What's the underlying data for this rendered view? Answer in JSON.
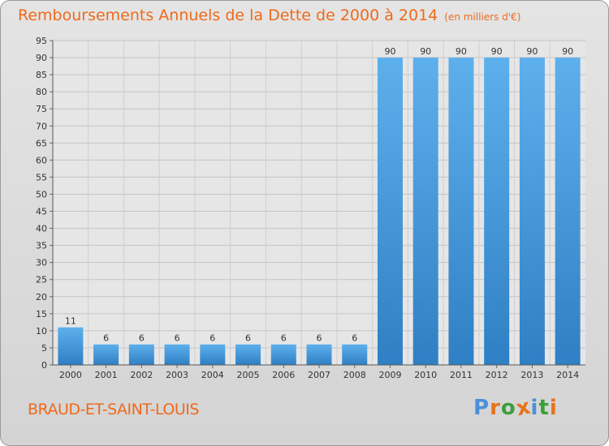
{
  "chart_data": {
    "type": "bar",
    "title": "Remboursements Annuels de la Dette de 2000 à 2014",
    "subtitle": "(en milliers d'€)",
    "categories": [
      "2000",
      "2001",
      "2002",
      "2003",
      "2004",
      "2005",
      "2006",
      "2007",
      "2008",
      "2009",
      "2010",
      "2011",
      "2012",
      "2013",
      "2014"
    ],
    "values": [
      11,
      6,
      6,
      6,
      6,
      6,
      6,
      6,
      6,
      90,
      90,
      90,
      90,
      90,
      90
    ],
    "xlabel": "",
    "ylabel": "",
    "ylim": [
      0,
      95
    ],
    "yticks": [
      0,
      5,
      10,
      15,
      20,
      25,
      30,
      35,
      40,
      45,
      50,
      55,
      60,
      65,
      70,
      75,
      80,
      85,
      90,
      95
    ],
    "grid": true,
    "bar_color": "#3d95dc"
  },
  "footer": {
    "commune": "BRAUD-ET-SAINT-LOUIS",
    "brand": "Proxiti",
    "brand_colors": [
      "#4a90d9",
      "#e8731a",
      "#3d9e3a",
      "#e8731a",
      "#4a90d9",
      "#3d9e3a",
      "#e8731a"
    ]
  }
}
